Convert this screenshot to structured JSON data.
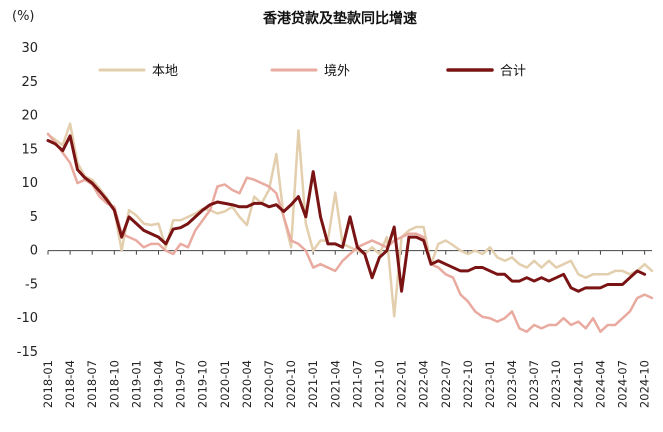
{
  "chart_data": {
    "type": "line",
    "title": "香港贷款及垫款同比增速",
    "ylabel": "(%)",
    "ylim": [
      -15,
      30
    ],
    "yticks": [
      -15,
      -10,
      -5,
      0,
      5,
      10,
      15,
      20,
      25,
      30
    ],
    "xlabels": [
      "2018-01",
      "2018-04",
      "2018-07",
      "2018-10",
      "2019-01",
      "2019-04",
      "2019-07",
      "2019-10",
      "2020-01",
      "2020-04",
      "2020-07",
      "2020-10",
      "2021-01",
      "2021-04",
      "2021-07",
      "2021-10",
      "2022-01",
      "2022-04",
      "2022-07",
      "2022-10",
      "2023-01",
      "2023-04",
      "2023-07",
      "2023-10",
      "2024-01",
      "2024-04",
      "2024-07",
      "2024-10"
    ],
    "legend_position": "top",
    "grid": false,
    "series": [
      {
        "name": "本地",
        "color": "#e3cfae",
        "width": 2.5,
        "values": [
          17.2,
          16.4,
          15.6,
          18.8,
          13.0,
          11.0,
          10.5,
          9.2,
          7.8,
          6.0,
          0.0,
          6.0,
          5.2,
          4.0,
          3.8,
          4.0,
          0.5,
          4.5,
          4.5,
          5.0,
          5.5,
          6.2,
          6.0,
          5.5,
          5.8,
          6.5,
          5.0,
          3.8,
          8.0,
          7.0,
          9.0,
          14.3,
          5.0,
          0.5,
          17.8,
          4.0,
          0.0,
          1.5,
          1.5,
          8.6,
          1.0,
          0.5,
          0.0,
          -0.5,
          0.5,
          -0.5,
          2.0,
          -9.7,
          2.0,
          3.0,
          3.5,
          3.5,
          -2.0,
          1.0,
          1.5,
          0.8,
          0.0,
          -0.5,
          0.0,
          -0.5,
          0.5,
          -1.0,
          -1.5,
          -1.0,
          -2.0,
          -2.5,
          -1.5,
          -2.5,
          -1.5,
          -2.5,
          -2.0,
          -1.5,
          -3.5,
          -4.0,
          -3.5,
          -3.5,
          -3.5,
          -3.0,
          -3.0,
          -3.5,
          -3.0,
          -2.0,
          -3.0
        ]
      },
      {
        "name": "境外",
        "color": "#e9aaa0",
        "width": 2.5,
        "values": [
          17.3,
          16.0,
          14.5,
          13.0,
          10.0,
          10.5,
          9.8,
          8.0,
          7.0,
          6.5,
          2.5,
          2.0,
          1.5,
          0.5,
          1.0,
          1.0,
          0.0,
          -0.5,
          1.0,
          0.5,
          3.0,
          4.5,
          6.0,
          9.5,
          9.8,
          9.0,
          8.5,
          10.8,
          10.5,
          10.0,
          9.5,
          8.5,
          5.0,
          1.5,
          1.0,
          0.0,
          -2.5,
          -2.0,
          -2.5,
          -3.0,
          -1.5,
          -0.5,
          0.5,
          1.0,
          1.5,
          1.0,
          0.5,
          1.5,
          2.0,
          2.5,
          2.5,
          2.0,
          -2.0,
          -2.5,
          -3.5,
          -4.0,
          -6.5,
          -7.5,
          -9.0,
          -9.8,
          -10.0,
          -10.5,
          -10.0,
          -9.0,
          -11.5,
          -12.0,
          -11.0,
          -11.5,
          -11.0,
          -11.0,
          -10.0,
          -11.0,
          -10.5,
          -11.5,
          -10.0,
          -12.0,
          -11.0,
          -11.0,
          -10.0,
          -9.0,
          -7.0,
          -6.5,
          -7.0
        ]
      },
      {
        "name": "合计",
        "color": "#7a1414",
        "width": 3,
        "values": [
          16.3,
          15.8,
          14.8,
          17.0,
          12.0,
          10.8,
          10.0,
          8.8,
          7.5,
          6.0,
          2.0,
          5.0,
          4.0,
          3.0,
          2.5,
          2.0,
          1.0,
          3.2,
          3.4,
          4.0,
          5.0,
          6.0,
          6.8,
          7.2,
          7.0,
          6.8,
          6.5,
          6.5,
          7.0,
          7.0,
          6.5,
          6.8,
          5.8,
          6.8,
          8.0,
          5.0,
          11.7,
          5.0,
          1.0,
          1.0,
          0.5,
          5.0,
          0.5,
          -0.5,
          -4.0,
          -1.0,
          0.0,
          3.5,
          -6.0,
          2.0,
          2.0,
          1.5,
          -2.0,
          -1.5,
          -2.0,
          -2.5,
          -3.0,
          -3.0,
          -2.5,
          -2.5,
          -3.0,
          -3.5,
          -3.5,
          -4.5,
          -4.5,
          -4.0,
          -4.5,
          -4.0,
          -4.5,
          -4.0,
          -3.5,
          -5.5,
          -6.0,
          -5.5,
          -5.5,
          -5.5,
          -5.0,
          -5.0,
          -5.0,
          -4.0,
          -3.0,
          -3.5
        ]
      }
    ]
  }
}
